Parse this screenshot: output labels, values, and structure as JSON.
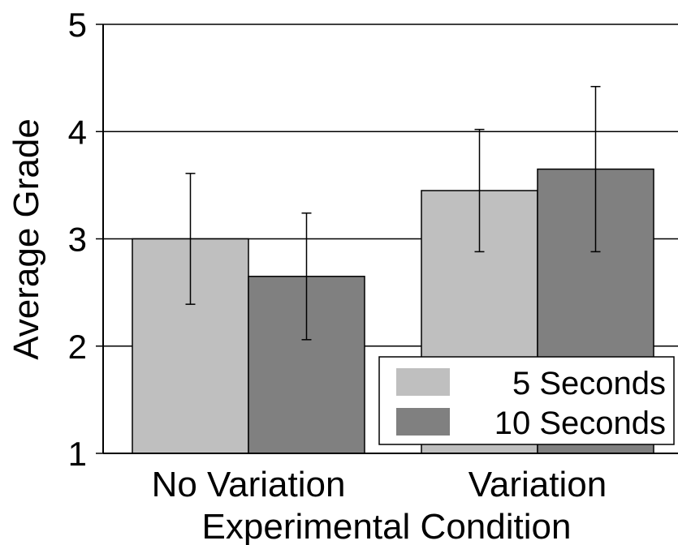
{
  "chart_data": {
    "type": "bar",
    "xlabel": "Experimental Condition",
    "ylabel": "Average Grade",
    "ylim": [
      1,
      5
    ],
    "yticks": [
      1,
      2,
      3,
      4,
      5
    ],
    "grid": true,
    "legend_position": "bottom-right",
    "categories": [
      "No Variation",
      "Variation"
    ],
    "series": [
      {
        "name": "5 Seconds",
        "color": "#bfbfbf",
        "values": [
          3.0,
          3.45
        ],
        "err_low": [
          2.39,
          2.88
        ],
        "err_high": [
          3.61,
          4.02
        ]
      },
      {
        "name": "10 Seconds",
        "color": "#808080",
        "values": [
          2.65,
          3.65
        ],
        "err_low": [
          2.06,
          2.88
        ],
        "err_high": [
          3.24,
          4.42
        ]
      }
    ]
  }
}
